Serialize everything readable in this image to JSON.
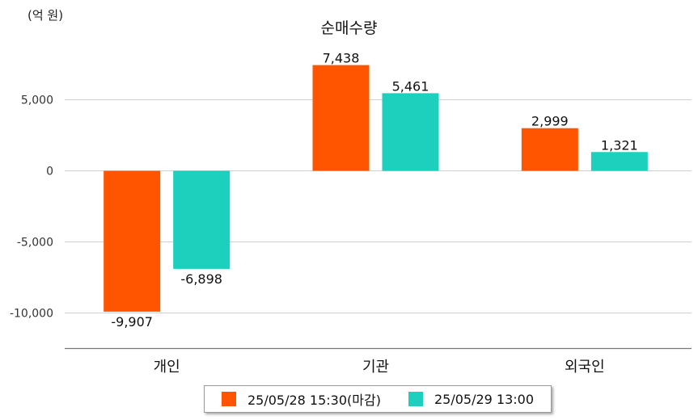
{
  "chart_data": {
    "type": "bar",
    "title": "순매수량",
    "unit": "(억 원)",
    "categories": [
      "개인",
      "기관",
      "외국인"
    ],
    "series": [
      {
        "name": "25/05/28 15:30(마감)",
        "values": [
          -9907,
          7438,
          2999
        ],
        "labels": [
          "-9,907",
          "7,438",
          "2,999"
        ],
        "color": "#ff5400"
      },
      {
        "name": "25/05/29 13:00",
        "values": [
          -6898,
          5461,
          1321
        ],
        "labels": [
          "-6,898",
          "5,461",
          "1,321"
        ],
        "color": "#1dcfbd"
      }
    ],
    "yticks": [
      5000,
      0,
      -5000,
      -10000
    ],
    "ytick_labels": [
      "5,000",
      "0",
      "-5,000",
      "-10,000"
    ],
    "ylim": [
      -12500,
      8300
    ],
    "grid": true,
    "legend_position": "bottom"
  }
}
